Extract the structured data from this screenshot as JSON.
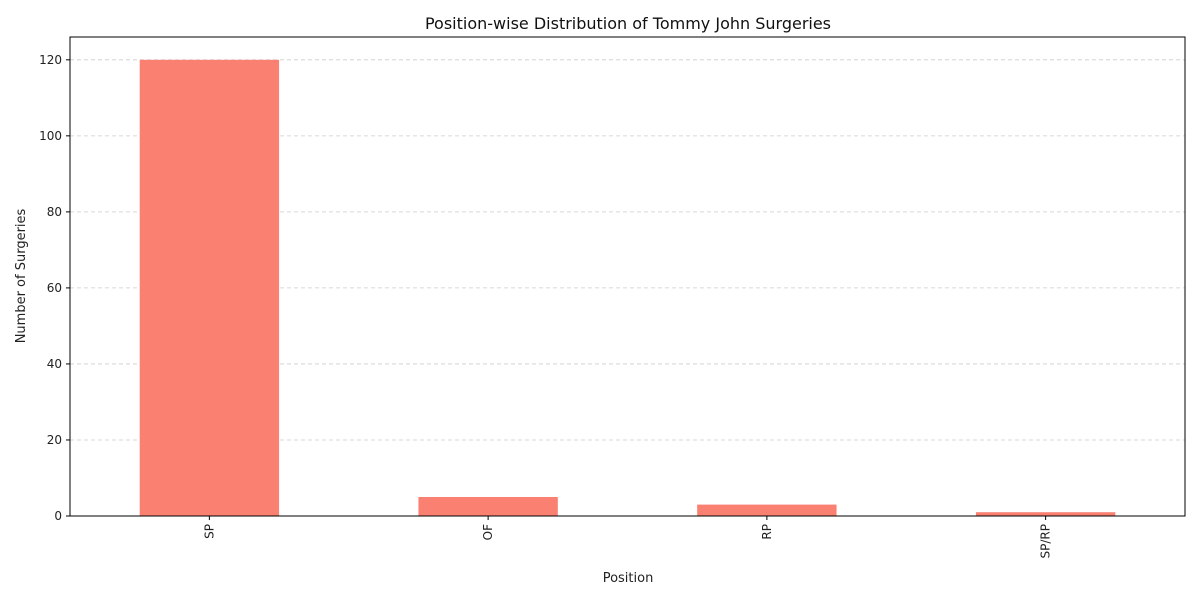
{
  "chart_data": {
    "type": "bar",
    "title": "Position-wise Distribution of Tommy John Surgeries",
    "xlabel": "Position",
    "ylabel": "Number of Surgeries",
    "categories": [
      "SP",
      "OF",
      "RP",
      "SP/RP"
    ],
    "values": [
      120,
      5,
      3,
      1
    ],
    "yticks": [
      0,
      20,
      40,
      60,
      80,
      100,
      120
    ],
    "ylim": [
      0,
      126
    ],
    "grid": "y-dashed",
    "bar_color": "#fa8072",
    "xtick_rotation": "vertical"
  }
}
